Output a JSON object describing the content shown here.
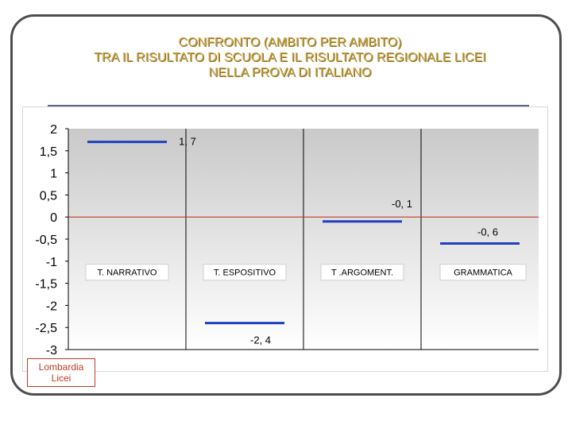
{
  "slide": {
    "title_lines": [
      "CONFRONTO (AMBITO PER AMBITO)",
      "TRA IL RISULTATO DI SCUOLA E IL RISULTATO REGIONALE LICEI",
      "NELLA PROVA DI  ITALIANO"
    ]
  },
  "colors": {
    "series": "#1f3fbf",
    "reference": "#c23b22",
    "title": "#c8a44a",
    "grid": "#000000"
  },
  "chart_data": {
    "type": "bar",
    "categories": [
      "T. NARRATIVO",
      "T. ESPOSITIVO",
      "T .ARGOMENT.",
      "GRAMMATICA"
    ],
    "values": [
      1.7,
      -2.4,
      -0.1,
      -0.6
    ],
    "value_labels": [
      "1, 7",
      "-2, 4",
      "-0, 1",
      "-0, 6"
    ],
    "reference_series": {
      "name_lines": [
        "Lombardia",
        "Licei"
      ],
      "value": 0
    },
    "ylim": [
      -3,
      2
    ],
    "yticks": [
      2,
      1.5,
      1,
      0.5,
      0,
      -0.5,
      -1,
      -1.5,
      -2,
      -2.5,
      -3
    ],
    "ytick_labels": [
      "2",
      "1,5",
      "1",
      "0,5",
      "0",
      "-0,5",
      "-1",
      "-1,5",
      "-2",
      "-2,5",
      "-3"
    ],
    "title": "",
    "xlabel": "",
    "ylabel": "",
    "grid": false,
    "legend_position": "bottom-left"
  }
}
